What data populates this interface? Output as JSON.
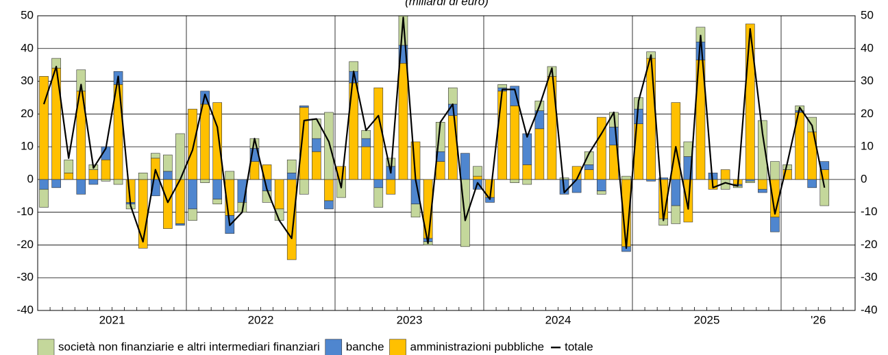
{
  "chart_data": {
    "type": "bar",
    "subtitle": "(miliardi di euro)",
    "categories": [
      null,
      null,
      null,
      null,
      null,
      "2021",
      null,
      null,
      null,
      null,
      null,
      null,
      null,
      null,
      null,
      null,
      null,
      "2022",
      null,
      null,
      null,
      null,
      null,
      null,
      null,
      null,
      null,
      null,
      null,
      "2023",
      null,
      null,
      null,
      null,
      null,
      null,
      null,
      null,
      null,
      null,
      null,
      "2024",
      null,
      null,
      null,
      null,
      null,
      null,
      null,
      null,
      null,
      null,
      null,
      "2025",
      null,
      null,
      null,
      null,
      null,
      null,
      null,
      null,
      "'26",
      null
    ],
    "series": [
      {
        "name": "società non finanziarie e altri intermediari finanziari",
        "color": "#c4d79b",
        "values": [
          -5.5,
          3,
          4,
          6.5,
          1.5,
          -0.5,
          -1.5,
          -1.5,
          2,
          1.5,
          5,
          14,
          -3.5,
          -1,
          -1.5,
          2.5,
          -3,
          3,
          -3.5,
          -3.5,
          4,
          -4.5,
          6,
          20.5,
          -5.5,
          3,
          2.5,
          -6,
          2.5,
          9,
          -4,
          -1,
          9,
          5,
          -20.5,
          3,
          0,
          1,
          -1,
          -1.5,
          3,
          3,
          0.5,
          0,
          4,
          -1,
          4.5,
          1,
          3.5,
          2,
          -2,
          -5.5,
          4.5,
          4.5,
          0,
          -3,
          -0.5,
          -0.5,
          18,
          5.5,
          1.5,
          1.5,
          4.5,
          -8
        ]
      },
      {
        "name": "banche",
        "color": "#4f86cf",
        "values": [
          -3,
          -2.5,
          0,
          -4.5,
          -1.5,
          4,
          4,
          -0.5,
          0,
          -5,
          2.5,
          -0.5,
          -9,
          4,
          -6,
          -5.5,
          -7,
          4,
          -3.5,
          0,
          2,
          0.5,
          4,
          -2.5,
          0,
          3.5,
          2.5,
          -2.5,
          4,
          5.5,
          -7.5,
          -1,
          3,
          3.5,
          8,
          -3,
          -1.5,
          1,
          6,
          9.5,
          5.5,
          0,
          -4.5,
          -4,
          1.5,
          -3.5,
          5.5,
          -1.5,
          4.5,
          -0.5,
          0.5,
          -8,
          7,
          5.5,
          2,
          0,
          -0.5,
          -0.5,
          -1,
          -4.5,
          0,
          0.5,
          -2.5,
          2.5
        ]
      },
      {
        "name": "amministrazioni pubbliche",
        "color": "#ffc000",
        "values": [
          31.5,
          34,
          2,
          27,
          3,
          6,
          29,
          -7,
          -21,
          6.5,
          -15,
          -13.5,
          21.5,
          23,
          23.5,
          -11,
          0,
          5.5,
          4.5,
          -9,
          -24.5,
          22,
          8.5,
          -6.5,
          4,
          29.5,
          10,
          28,
          -4.5,
          35.5,
          11.5,
          -18,
          5.5,
          19.5,
          0,
          1,
          -5.5,
          27,
          22.5,
          4.5,
          15.5,
          31.5,
          0,
          4,
          3,
          19,
          10.5,
          -20.5,
          17,
          37,
          -12,
          23.5,
          -13,
          36.5,
          -3,
          3,
          -1.5,
          47.5,
          -3,
          -11.5,
          3,
          20.5,
          14.5,
          3
        ]
      },
      {
        "name": "totale",
        "type": "line",
        "color": "#000000",
        "values": [
          23,
          34.5,
          6.5,
          29,
          3.5,
          9.5,
          31.5,
          -8,
          -19,
          3,
          -7,
          0,
          9,
          26,
          16,
          -14,
          -10,
          12.5,
          -3,
          -12.5,
          -18,
          18,
          18.5,
          11.5,
          -2.5,
          33,
          15,
          19.5,
          2,
          49.5,
          0,
          -19.5,
          17.5,
          23,
          -12.5,
          -1,
          -6,
          27.5,
          27.5,
          13,
          22.5,
          34,
          -4,
          0,
          8,
          14,
          20.5,
          -21,
          24,
          38,
          -12.5,
          10,
          -9,
          44,
          -2.5,
          -1,
          -2,
          46,
          14,
          -10.5,
          5,
          22,
          16.5,
          -2.5
        ]
      }
    ],
    "ylim": [
      -40,
      50
    ],
    "yticks": [
      -40,
      -30,
      -20,
      -10,
      0,
      10,
      20,
      30,
      40,
      50
    ],
    "grid": true
  }
}
